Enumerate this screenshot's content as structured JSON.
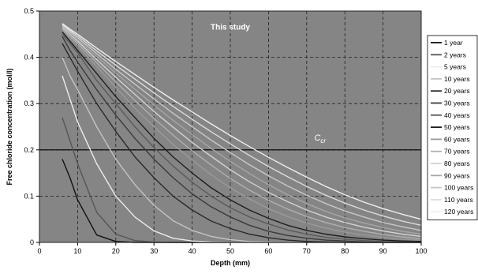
{
  "chart_data": {
    "type": "line",
    "annotation": "This study",
    "threshold": {
      "label_main": "C",
      "label_sub": "cr",
      "value": 0.2
    },
    "xlabel": "Depth (mm)",
    "ylabel": "Free chloride concentration (mol/l)",
    "xlim": [
      0,
      100
    ],
    "ylim": [
      0,
      0.5
    ],
    "xticks": [
      0,
      10,
      20,
      30,
      40,
      50,
      60,
      70,
      80,
      90,
      100
    ],
    "yticks": [
      0,
      0.1,
      0.2,
      0.3,
      0.4,
      0.5
    ],
    "grid": true,
    "legend_position": "right",
    "x": [
      6,
      8,
      10,
      15,
      20,
      25,
      30,
      35,
      40,
      45,
      50,
      55,
      60,
      65,
      70,
      75,
      80,
      85,
      90,
      95,
      100
    ],
    "series": [
      {
        "name": "1 year",
        "color": "#111111",
        "values": [
          0.18,
          0.14,
          0.092,
          0.016,
          0.002,
          0,
          0,
          0,
          0,
          0,
          0,
          0,
          0,
          0,
          0,
          0,
          0,
          0,
          0,
          0,
          0
        ]
      },
      {
        "name": "2 years",
        "color": "#555555",
        "values": [
          0.27,
          0.22,
          0.17,
          0.065,
          0.018,
          0.004,
          0.001,
          0,
          0,
          0,
          0,
          0,
          0,
          0,
          0,
          0,
          0,
          0,
          0,
          0,
          0
        ]
      },
      {
        "name": "5 years",
        "color": "#ececec",
        "values": [
          0.36,
          0.31,
          0.26,
          0.17,
          0.1,
          0.055,
          0.025,
          0.009,
          0.003,
          0.001,
          0,
          0,
          0,
          0,
          0,
          0,
          0,
          0,
          0,
          0,
          0
        ]
      },
      {
        "name": "10 years",
        "color": "#c4c4c4",
        "values": [
          0.4,
          0.36,
          0.33,
          0.25,
          0.18,
          0.125,
          0.08,
          0.047,
          0.026,
          0.013,
          0.006,
          0.002,
          0.001,
          0,
          0,
          0,
          0,
          0,
          0,
          0,
          0
        ]
      },
      {
        "name": "20 years",
        "color": "#2a2a2a",
        "values": [
          0.43,
          0.4,
          0.37,
          0.3,
          0.24,
          0.185,
          0.14,
          0.1,
          0.07,
          0.046,
          0.03,
          0.018,
          0.01,
          0.005,
          0.002,
          0.001,
          0,
          0,
          0,
          0,
          0
        ]
      },
      {
        "name": "30 years",
        "color": "#3a3a3a",
        "values": [
          0.445,
          0.415,
          0.39,
          0.33,
          0.275,
          0.225,
          0.18,
          0.14,
          0.105,
          0.077,
          0.055,
          0.037,
          0.024,
          0.015,
          0.009,
          0.005,
          0.003,
          0.001,
          0,
          0,
          0
        ]
      },
      {
        "name": "40 years",
        "color": "#5a5a5a",
        "values": [
          0.45,
          0.43,
          0.41,
          0.35,
          0.3,
          0.25,
          0.205,
          0.165,
          0.13,
          0.1,
          0.075,
          0.055,
          0.04,
          0.027,
          0.018,
          0.011,
          0.007,
          0.004,
          0.002,
          0.001,
          0.001
        ]
      },
      {
        "name": "50 years",
        "color": "#1e1e1e",
        "values": [
          0.455,
          0.435,
          0.415,
          0.365,
          0.315,
          0.27,
          0.225,
          0.185,
          0.15,
          0.118,
          0.092,
          0.07,
          0.052,
          0.037,
          0.026,
          0.018,
          0.012,
          0.008,
          0.005,
          0.003,
          0.002
        ]
      },
      {
        "name": "60 years",
        "color": "#9a9a9a",
        "values": [
          0.46,
          0.44,
          0.425,
          0.38,
          0.335,
          0.29,
          0.25,
          0.212,
          0.178,
          0.146,
          0.118,
          0.094,
          0.073,
          0.056,
          0.042,
          0.031,
          0.022,
          0.016,
          0.011,
          0.007,
          0.005
        ]
      },
      {
        "name": "70 years",
        "color": "#b0b0b0",
        "values": [
          0.462,
          0.445,
          0.43,
          0.388,
          0.347,
          0.307,
          0.268,
          0.232,
          0.198,
          0.167,
          0.138,
          0.113,
          0.091,
          0.072,
          0.056,
          0.043,
          0.032,
          0.024,
          0.017,
          0.012,
          0.008
        ]
      },
      {
        "name": "80 years",
        "color": "#d2d2d2",
        "values": [
          0.465,
          0.45,
          0.435,
          0.395,
          0.357,
          0.32,
          0.283,
          0.249,
          0.216,
          0.186,
          0.157,
          0.131,
          0.108,
          0.088,
          0.07,
          0.055,
          0.043,
          0.033,
          0.025,
          0.018,
          0.013
        ]
      },
      {
        "name": "90 years",
        "color": "#a6a6a6",
        "values": [
          0.467,
          0.452,
          0.438,
          0.402,
          0.366,
          0.331,
          0.297,
          0.264,
          0.233,
          0.203,
          0.175,
          0.149,
          0.125,
          0.103,
          0.084,
          0.067,
          0.053,
          0.042,
          0.032,
          0.024,
          0.018
        ]
      },
      {
        "name": "100 years",
        "color": "#c8c8c8",
        "values": [
          0.469,
          0.455,
          0.442,
          0.408,
          0.374,
          0.342,
          0.31,
          0.279,
          0.25,
          0.221,
          0.194,
          0.168,
          0.144,
          0.122,
          0.102,
          0.084,
          0.068,
          0.055,
          0.043,
          0.034,
          0.026
        ]
      },
      {
        "name": "110 years",
        "color": "#dcdcdc",
        "values": [
          0.471,
          0.458,
          0.446,
          0.414,
          0.383,
          0.353,
          0.323,
          0.294,
          0.266,
          0.239,
          0.213,
          0.188,
          0.164,
          0.142,
          0.121,
          0.102,
          0.085,
          0.07,
          0.057,
          0.046,
          0.037
        ]
      },
      {
        "name": "120 years",
        "color": "#efefef",
        "values": [
          0.473,
          0.461,
          0.45,
          0.42,
          0.391,
          0.363,
          0.335,
          0.308,
          0.282,
          0.256,
          0.231,
          0.207,
          0.184,
          0.162,
          0.141,
          0.121,
          0.103,
          0.087,
          0.073,
          0.061,
          0.05
        ]
      }
    ]
  }
}
